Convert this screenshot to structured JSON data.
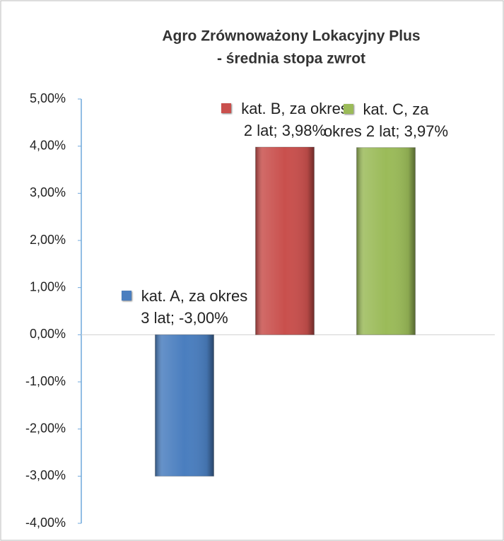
{
  "chart_data": {
    "type": "bar",
    "title": [
      "Agro Zrównoważony Lokacyjny Plus",
      "- średnia stopa zwrot"
    ],
    "values": [
      -3.0,
      3.98,
      3.97
    ],
    "value_labels": [
      "kat. A, za okres 3 lat; -3,00%",
      "kat. B, za okres 2 lat; 3,98%",
      "kat. C, za okres 2 lat; 3,97%"
    ],
    "colors": [
      "#4a7ebf",
      "#c9504d",
      "#9bbb59"
    ],
    "ylim": [
      -4,
      5
    ],
    "yticks": [
      {
        "value": -4,
        "label": "-4,00%"
      },
      {
        "value": -3,
        "label": "-3,00%"
      },
      {
        "value": -2,
        "label": "-2,00%"
      },
      {
        "value": -1,
        "label": "-1,00%"
      },
      {
        "value": 0,
        "label": "0,00%"
      },
      {
        "value": 1,
        "label": "1,00%"
      },
      {
        "value": 2,
        "label": "2,00%"
      },
      {
        "value": 3,
        "label": "3,00%"
      },
      {
        "value": 4,
        "label": "4,00%"
      },
      {
        "value": 5,
        "label": "5,00%"
      }
    ],
    "grid": false
  }
}
